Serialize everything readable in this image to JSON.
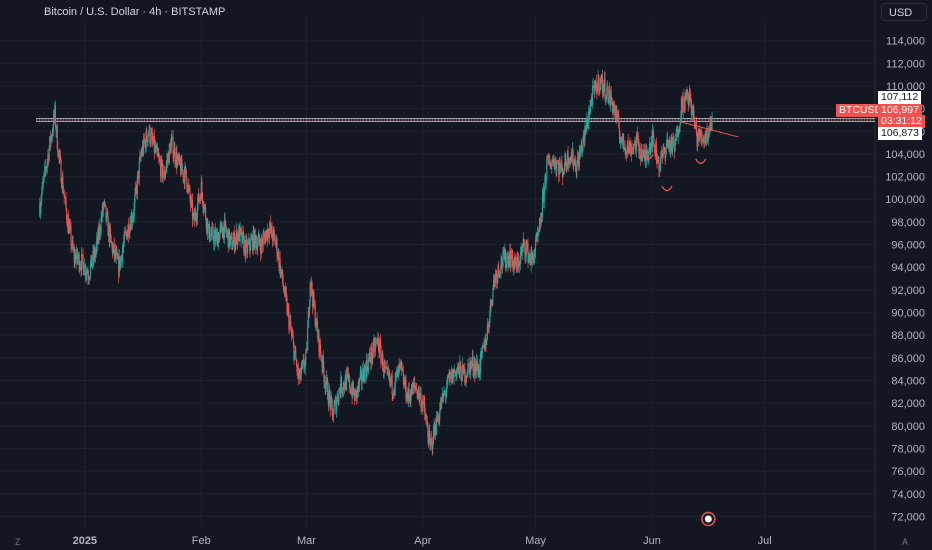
{
  "header": {
    "title": "Bitcoin / U.S. Dollar · 4h · BITSTAMP",
    "currency_button": "USD"
  },
  "corners": {
    "left_label": "Z",
    "right_label": "A"
  },
  "price_tags": {
    "upper_line": "107,112",
    "symbol": "BTCUSD",
    "last_price": "106,997",
    "countdown": "03:31:12",
    "lower_line": "106,873"
  },
  "colors": {
    "background": "#131722",
    "up": "#26a69a",
    "down": "#ef5350",
    "grid": "#1e222d",
    "text": "#b2b5be"
  },
  "chart_data": {
    "type": "candlestick",
    "title": "Bitcoin / U.S. Dollar · 4h · BITSTAMP",
    "y_ticks": [
      "72,000",
      "74,000",
      "76,000",
      "78,000",
      "80,000",
      "82,000",
      "84,000",
      "86,000",
      "88,000",
      "90,000",
      "92,000",
      "94,000",
      "96,000",
      "98,000",
      "100,000",
      "102,000",
      "104,000",
      "106,000",
      "108,000",
      "110,000",
      "112,000",
      "114,000"
    ],
    "y_tick_values": [
      72000,
      74000,
      76000,
      78000,
      80000,
      82000,
      84000,
      86000,
      88000,
      90000,
      92000,
      94000,
      96000,
      98000,
      100000,
      102000,
      104000,
      106000,
      108000,
      110000,
      112000,
      114000
    ],
    "ylim": [
      70800,
      116000
    ],
    "x_ticks": [
      "2025",
      "Feb",
      "Mar",
      "Apr",
      "May",
      "Jun",
      "Jul"
    ],
    "x_tick_days": [
      31,
      62,
      90,
      121,
      151,
      182,
      212
    ],
    "xlim_days": [
      18,
      231
    ],
    "horizontal_lines": [
      107112,
      106873
    ],
    "last_price": 106997,
    "approx_close_path": [
      {
        "day": 19,
        "price": 99500
      },
      {
        "day": 21,
        "price": 103500
      },
      {
        "day": 23,
        "price": 107500
      },
      {
        "day": 24,
        "price": 104000
      },
      {
        "day": 26,
        "price": 99000
      },
      {
        "day": 28,
        "price": 95000
      },
      {
        "day": 30,
        "price": 94500
      },
      {
        "day": 32,
        "price": 93500
      },
      {
        "day": 34,
        "price": 95500
      },
      {
        "day": 36,
        "price": 99500
      },
      {
        "day": 38,
        "price": 96000
      },
      {
        "day": 40,
        "price": 94000
      },
      {
        "day": 42,
        "price": 97000
      },
      {
        "day": 44,
        "price": 99000
      },
      {
        "day": 46,
        "price": 104000
      },
      {
        "day": 48,
        "price": 106000
      },
      {
        "day": 50,
        "price": 104000
      },
      {
        "day": 52,
        "price": 102000
      },
      {
        "day": 54,
        "price": 105000
      },
      {
        "day": 56,
        "price": 103000
      },
      {
        "day": 58,
        "price": 102000
      },
      {
        "day": 60,
        "price": 98000
      },
      {
        "day": 62,
        "price": 101000
      },
      {
        "day": 64,
        "price": 97000
      },
      {
        "day": 66,
        "price": 96500
      },
      {
        "day": 68,
        "price": 97500
      },
      {
        "day": 70,
        "price": 96000
      },
      {
        "day": 72,
        "price": 97000
      },
      {
        "day": 74,
        "price": 95500
      },
      {
        "day": 76,
        "price": 96500
      },
      {
        "day": 78,
        "price": 96000
      },
      {
        "day": 80,
        "price": 97500
      },
      {
        "day": 82,
        "price": 96000
      },
      {
        "day": 84,
        "price": 92000
      },
      {
        "day": 86,
        "price": 88000
      },
      {
        "day": 88,
        "price": 84000
      },
      {
        "day": 90,
        "price": 86000
      },
      {
        "day": 91,
        "price": 93000
      },
      {
        "day": 93,
        "price": 88000
      },
      {
        "day": 95,
        "price": 84000
      },
      {
        "day": 97,
        "price": 81000
      },
      {
        "day": 99,
        "price": 83500
      },
      {
        "day": 101,
        "price": 84000
      },
      {
        "day": 103,
        "price": 82500
      },
      {
        "day": 105,
        "price": 84500
      },
      {
        "day": 107,
        "price": 86000
      },
      {
        "day": 109,
        "price": 87500
      },
      {
        "day": 111,
        "price": 84500
      },
      {
        "day": 113,
        "price": 83500
      },
      {
        "day": 115,
        "price": 85000
      },
      {
        "day": 117,
        "price": 82500
      },
      {
        "day": 119,
        "price": 83500
      },
      {
        "day": 121,
        "price": 82000
      },
      {
        "day": 123,
        "price": 78000
      },
      {
        "day": 124,
        "price": 79500
      },
      {
        "day": 126,
        "price": 82000
      },
      {
        "day": 128,
        "price": 84000
      },
      {
        "day": 130,
        "price": 85000
      },
      {
        "day": 132,
        "price": 84500
      },
      {
        "day": 134,
        "price": 85500
      },
      {
        "day": 136,
        "price": 85000
      },
      {
        "day": 138,
        "price": 88000
      },
      {
        "day": 140,
        "price": 93000
      },
      {
        "day": 142,
        "price": 94500
      },
      {
        "day": 144,
        "price": 95000
      },
      {
        "day": 146,
        "price": 94000
      },
      {
        "day": 148,
        "price": 96000
      },
      {
        "day": 150,
        "price": 94500
      },
      {
        "day": 152,
        "price": 97000
      },
      {
        "day": 154,
        "price": 103000
      },
      {
        "day": 156,
        "price": 103500
      },
      {
        "day": 158,
        "price": 102500
      },
      {
        "day": 160,
        "price": 104000
      },
      {
        "day": 162,
        "price": 103000
      },
      {
        "day": 164,
        "price": 105500
      },
      {
        "day": 166,
        "price": 109000
      },
      {
        "day": 168,
        "price": 110500
      },
      {
        "day": 170,
        "price": 109500
      },
      {
        "day": 172,
        "price": 108000
      },
      {
        "day": 174,
        "price": 105000
      },
      {
        "day": 176,
        "price": 104500
      },
      {
        "day": 178,
        "price": 105000
      },
      {
        "day": 180,
        "price": 103500
      },
      {
        "day": 182,
        "price": 105500
      },
      {
        "day": 184,
        "price": 103000
      },
      {
        "day": 186,
        "price": 105000
      },
      {
        "day": 188,
        "price": 104500
      },
      {
        "day": 190,
        "price": 108500
      },
      {
        "day": 192,
        "price": 109000
      },
      {
        "day": 194,
        "price": 105500
      },
      {
        "day": 196,
        "price": 105500
      },
      {
        "day": 197,
        "price": 106000
      },
      {
        "day": 198,
        "price": 106997
      }
    ],
    "grid": true
  }
}
